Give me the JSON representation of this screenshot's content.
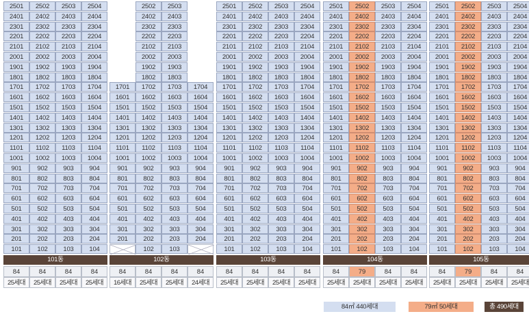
{
  "buildings": [
    {
      "label": "101동",
      "floor_max": 25,
      "highlight_line": null,
      "blank_floors": {},
      "types": [
        "84",
        "84",
        "84",
        "84"
      ],
      "counts": [
        "25세대",
        "25세대",
        "25세대",
        "25세대"
      ]
    },
    {
      "label": "102동",
      "floor_max": 25,
      "highlight_line": null,
      "blank_floors": {
        "1": 18,
        "2": 0,
        "3": 0,
        "4": 18
      },
      "x_mark_floor": 1,
      "types": [
        "84",
        "84",
        "84",
        "84"
      ],
      "counts": [
        "16세대",
        "25세대",
        "25세대",
        "24세대"
      ]
    },
    {
      "label": "103동",
      "floor_max": 25,
      "highlight_line": null,
      "blank_floors": {},
      "types": [
        "84",
        "84",
        "84",
        "84"
      ],
      "counts": [
        "25세대",
        "25세대",
        "25세대",
        "25세대"
      ]
    },
    {
      "label": "104동",
      "floor_max": 25,
      "highlight_line": 2,
      "blank_floors": {},
      "types": [
        "84",
        "79",
        "84",
        "84"
      ],
      "counts": [
        "25세대",
        "25세대",
        "25세대",
        "25세대"
      ]
    },
    {
      "label": "105동",
      "floor_max": 25,
      "highlight_line": 2,
      "blank_floors": {},
      "types": [
        "84",
        "79",
        "84",
        "84"
      ],
      "counts": [
        "25세대",
        "25세대",
        "25세대",
        "25세대"
      ]
    }
  ],
  "legend": {
    "type84": "84㎡ 440세대",
    "type79": "79㎡ 50세대",
    "total": "총 490세대"
  },
  "colors": {
    "type84": "#d4def0",
    "type79": "#f4ad88",
    "label_bg": "#5a4438"
  }
}
